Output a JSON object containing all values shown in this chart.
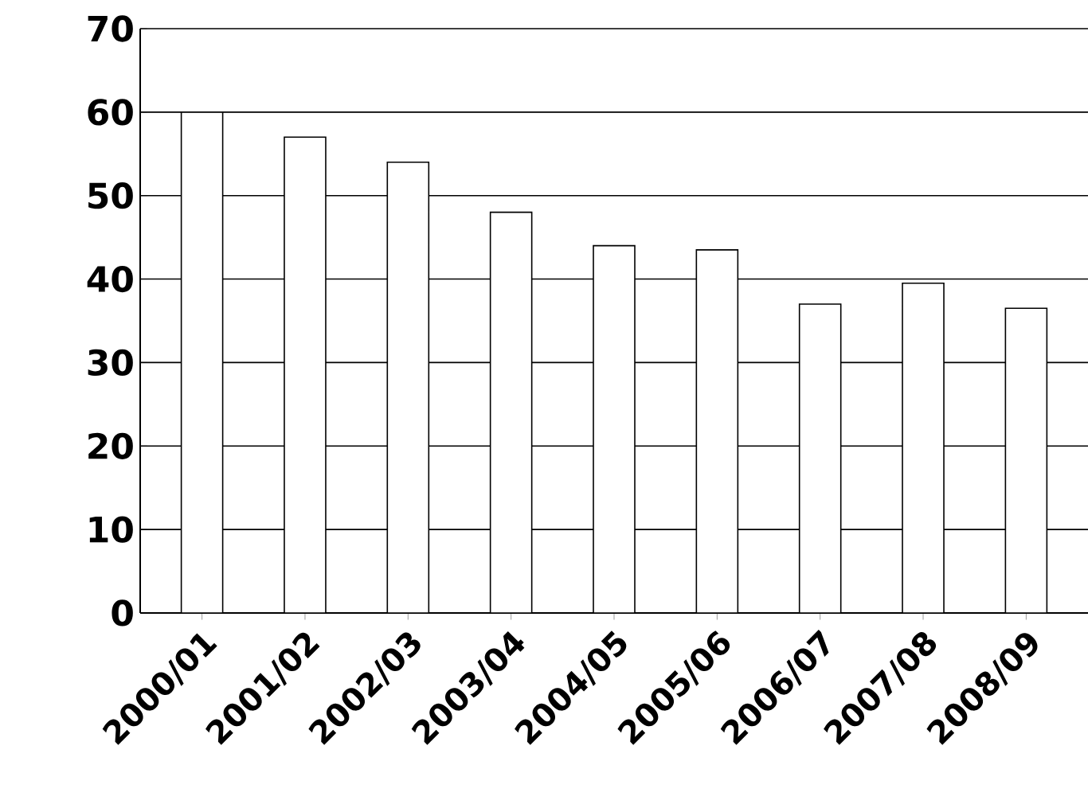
{
  "chart_data": {
    "type": "bar",
    "categories": [
      "2000/01",
      "2001/02",
      "2002/03",
      "2003/04",
      "2004/05",
      "2005/06",
      "2006/07",
      "2007/08",
      "2008/09"
    ],
    "values": [
      60,
      57,
      54,
      48,
      44,
      43.5,
      37,
      39.5,
      36.5
    ],
    "color": "#ffffff",
    "ylim": [
      0,
      70
    ],
    "yticks": [
      0,
      10,
      20,
      30,
      40,
      50,
      60,
      70
    ],
    "grid": "y"
  }
}
